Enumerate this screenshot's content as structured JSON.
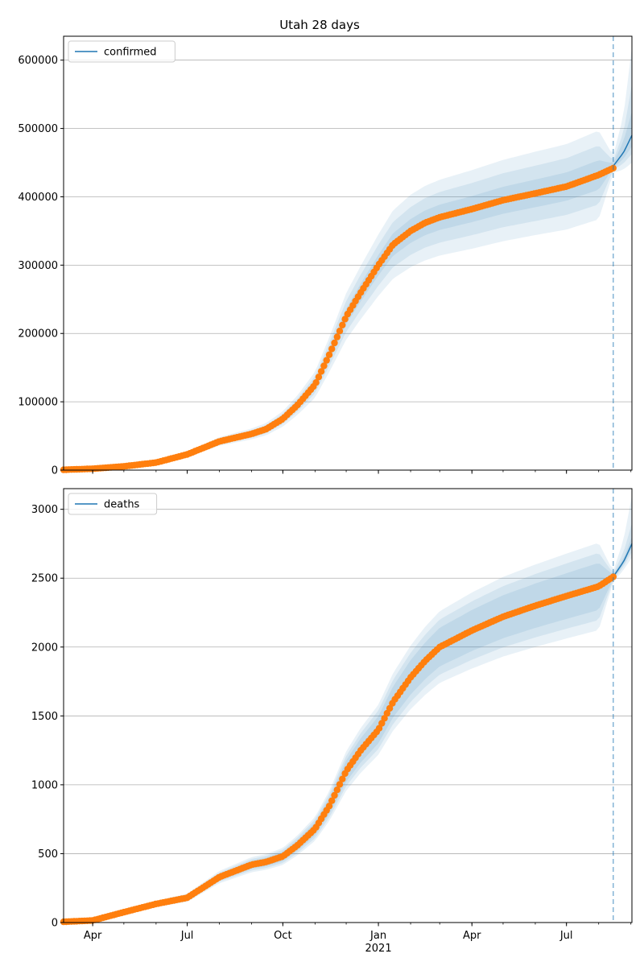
{
  "chart_data": {
    "title": "Utah 28 days",
    "type": "line",
    "x_ticks": [
      {
        "date": "2020-04-01",
        "label": "Apr",
        "sublabel": ""
      },
      {
        "date": "2020-07-01",
        "label": "Jul",
        "sublabel": ""
      },
      {
        "date": "2020-10-01",
        "label": "Oct",
        "sublabel": ""
      },
      {
        "date": "2021-01-01",
        "label": "Jan",
        "sublabel": "2021"
      },
      {
        "date": "2021-04-01",
        "label": "Apr",
        "sublabel": ""
      },
      {
        "date": "2021-07-01",
        "label": "Jul",
        "sublabel": ""
      }
    ],
    "xlim": [
      "2020-03-04",
      "2021-09-02"
    ],
    "forecast_start": "2021-08-15",
    "grid": "horizontal",
    "panels": [
      {
        "ylim": [
          0,
          635000
        ],
        "yticks": [
          0,
          100000,
          200000,
          300000,
          400000,
          500000,
          600000
        ],
        "ytick_labels": [
          "0",
          "100000",
          "200000",
          "300000",
          "400000",
          "500000",
          "600000"
        ],
        "legend": {
          "label": "confirmed",
          "placement": "upper left"
        },
        "model": {
          "name": "confirmed",
          "dates": [
            "2020-03-04",
            "2020-04-01",
            "2020-05-01",
            "2020-06-01",
            "2020-07-01",
            "2020-08-01",
            "2020-09-01",
            "2020-09-15",
            "2020-10-01",
            "2020-10-15",
            "2020-11-01",
            "2020-11-15",
            "2020-12-01",
            "2020-12-15",
            "2021-01-01",
            "2021-01-15",
            "2021-02-01",
            "2021-02-15",
            "2021-03-01",
            "2021-04-01",
            "2021-05-01",
            "2021-06-01",
            "2021-07-01",
            "2021-08-01",
            "2021-08-15",
            "2021-08-25",
            "2021-09-02"
          ],
          "values": [
            500,
            2000,
            5500,
            11000,
            23000,
            42000,
            53000,
            60000,
            75000,
            95000,
            125000,
            170000,
            225000,
            260000,
            300000,
            330000,
            350000,
            362000,
            370000,
            382000,
            395000,
            405000,
            415000,
            432000,
            445000,
            465000,
            490000
          ],
          "bands": [
            {
              "lower": [
                0,
                1700,
                4700,
                9300,
                19500,
                35700,
                45000,
                51000,
                63700,
                80700,
                106000,
                144500,
                191000,
                221000,
                255000,
                280000,
                297000,
                307000,
                314000,
                324000,
                335000,
                344000,
                352000,
                367000,
                435000,
                440000,
                450000
              ],
              "upper": [
                600,
                2300,
                6300,
                12700,
                26500,
                48300,
                61000,
                69000,
                86200,
                109200,
                144000,
                195500,
                259000,
                299000,
                345000,
                380000,
                403000,
                416000,
                425000,
                439000,
                454000,
                466000,
                477000,
                497000,
                460000,
                520000,
                620000
              ]
            },
            {
              "lower": [
                0,
                1800,
                5000,
                9900,
                20700,
                37800,
                47700,
                54000,
                67500,
                85500,
                112500,
                153000,
                202500,
                234000,
                270000,
                297000,
                315000,
                325800,
                333000,
                343800,
                355500,
                364500,
                373500,
                388800,
                439000,
                449000,
                463000
              ],
              "upper": [
                600,
                2200,
                6000,
                12100,
                25300,
                46200,
                58300,
                66000,
                82500,
                104500,
                137500,
                187000,
                247500,
                286000,
                330000,
                363000,
                385000,
                398200,
                407000,
                420200,
                434500,
                445500,
                456500,
                475200,
                453000,
                495000,
                565000
              ]
            },
            {
              "lower": [
                0,
                1900,
                5200,
                10400,
                21800,
                39900,
                50300,
                57000,
                71200,
                90200,
                118700,
                161500,
                213700,
                247000,
                285000,
                313500,
                332500,
                343900,
                351500,
                362900,
                375200,
                384700,
                394200,
                410400,
                442000,
                456000,
                474000
              ],
              "upper": [
                500,
                2100,
                5800,
                11500,
                24100,
                44100,
                55600,
                63000,
                78700,
                99700,
                131200,
                178500,
                236200,
                273000,
                315000,
                346500,
                367500,
                380100,
                388500,
                401100,
                414700,
                425200,
                435700,
                453600,
                449000,
                482000,
                525000
              ]
            }
          ]
        },
        "observed": {
          "dates": [
            "2020-03-04",
            "2020-04-01",
            "2020-05-01",
            "2020-06-01",
            "2020-07-01",
            "2020-08-01",
            "2020-09-01",
            "2020-09-15",
            "2020-10-01",
            "2020-10-15",
            "2020-11-01",
            "2020-11-15",
            "2020-12-01",
            "2020-12-15",
            "2021-01-01",
            "2021-01-15",
            "2021-02-01",
            "2021-02-15",
            "2021-03-01",
            "2021-04-01",
            "2021-05-01",
            "2021-06-01",
            "2021-07-01",
            "2021-08-01",
            "2021-08-15"
          ],
          "values": [
            500,
            2000,
            5500,
            11000,
            23000,
            42000,
            53000,
            60000,
            75000,
            95000,
            125000,
            170000,
            225000,
            260000,
            300000,
            330000,
            350000,
            362000,
            370000,
            382000,
            395000,
            405000,
            415000,
            432000,
            442000
          ]
        }
      },
      {
        "ylim": [
          0,
          3150
        ],
        "yticks": [
          0,
          500,
          1000,
          1500,
          2000,
          2500,
          3000
        ],
        "ytick_labels": [
          "0",
          "500",
          "1000",
          "1500",
          "2000",
          "2500",
          "3000"
        ],
        "legend": {
          "label": "deaths",
          "placement": "upper left"
        },
        "model": {
          "name": "deaths",
          "dates": [
            "2020-03-04",
            "2020-04-01",
            "2020-05-01",
            "2020-06-01",
            "2020-07-01",
            "2020-08-01",
            "2020-09-01",
            "2020-09-15",
            "2020-10-01",
            "2020-10-15",
            "2020-11-01",
            "2020-11-15",
            "2020-12-01",
            "2020-12-15",
            "2021-01-01",
            "2021-01-15",
            "2021-02-01",
            "2021-02-15",
            "2021-03-01",
            "2021-04-01",
            "2021-05-01",
            "2021-06-01",
            "2021-07-01",
            "2021-08-01",
            "2021-08-15",
            "2021-08-25",
            "2021-09-02"
          ],
          "values": [
            5,
            15,
            75,
            135,
            180,
            330,
            420,
            440,
            480,
            560,
            680,
            850,
            1100,
            1250,
            1400,
            1600,
            1780,
            1900,
            2000,
            2120,
            2220,
            2300,
            2370,
            2440,
            2510,
            2620,
            2750
          ],
          "bands": [
            {
              "lower": [
                0,
                10,
                62,
                113,
                150,
                285,
                365,
                383,
                418,
                488,
                593,
                741,
                957,
                1087,
                1218,
                1392,
                1549,
                1653,
                1740,
                1844,
                1931,
                2001,
                2062,
                2123,
                2470,
                2560,
                2650
              ],
              "upper": [
                10,
                20,
                88,
                157,
                210,
                375,
                475,
                497,
                542,
                632,
                767,
                959,
                1243,
                1413,
                1582,
                1808,
                2011,
                2147,
                2260,
                2396,
                2509,
                2599,
                2678,
                2757,
                2550,
                2780,
                3100
              ]
            },
            {
              "lower": [
                0,
                12,
                66,
                119,
                158,
                297,
                378,
                396,
                432,
                504,
                612,
                765,
                990,
                1125,
                1260,
                1440,
                1602,
                1710,
                1800,
                1908,
                1998,
                2070,
                2133,
                2196,
                2485,
                2585,
                2690
              ],
              "upper": [
                8,
                18,
                84,
                151,
                202,
                363,
                462,
                484,
                528,
                616,
                748,
                935,
                1210,
                1375,
                1540,
                1760,
                1958,
                2090,
                2200,
                2332,
                2442,
                2530,
                2607,
                2684,
                2535,
                2690,
                2900
              ]
            },
            {
              "lower": [
                0,
                13,
                69,
                124,
                166,
                307,
                391,
                409,
                446,
                521,
                632,
                790,
                1023,
                1162,
                1302,
                1488,
                1655,
                1767,
                1860,
                1971,
                2064,
                2139,
                2204,
                2269,
                2495,
                2600,
                2720
              ],
              "upper": [
                7,
                17,
                81,
                146,
                194,
                353,
                449,
                471,
                514,
                599,
                728,
                910,
                1177,
                1338,
                1498,
                1712,
                1905,
                2033,
                2140,
                2269,
                2376,
                2461,
                2536,
                2611,
                2525,
                2645,
                2800
              ]
            }
          ]
        },
        "observed": {
          "dates": [
            "2020-03-04",
            "2020-04-01",
            "2020-05-01",
            "2020-06-01",
            "2020-07-01",
            "2020-08-01",
            "2020-09-01",
            "2020-09-15",
            "2020-10-01",
            "2020-10-15",
            "2020-11-01",
            "2020-11-15",
            "2020-12-01",
            "2020-12-15",
            "2021-01-01",
            "2021-01-15",
            "2021-02-01",
            "2021-02-15",
            "2021-03-01",
            "2021-04-01",
            "2021-05-01",
            "2021-06-01",
            "2021-07-01",
            "2021-08-01",
            "2021-08-15"
          ],
          "values": [
            5,
            15,
            75,
            135,
            180,
            330,
            420,
            440,
            480,
            560,
            680,
            850,
            1100,
            1250,
            1400,
            1600,
            1780,
            1900,
            2000,
            2120,
            2220,
            2300,
            2370,
            2440,
            2510
          ]
        }
      }
    ]
  },
  "colors": {
    "model_line": "#1f77b4",
    "band_fill": "#1f77b4",
    "observed": "#ff7f0e",
    "forecast_line": "#1f77b4",
    "grid": "#b0b0b0",
    "axis": "#000000",
    "legend_border": "#cccccc"
  }
}
